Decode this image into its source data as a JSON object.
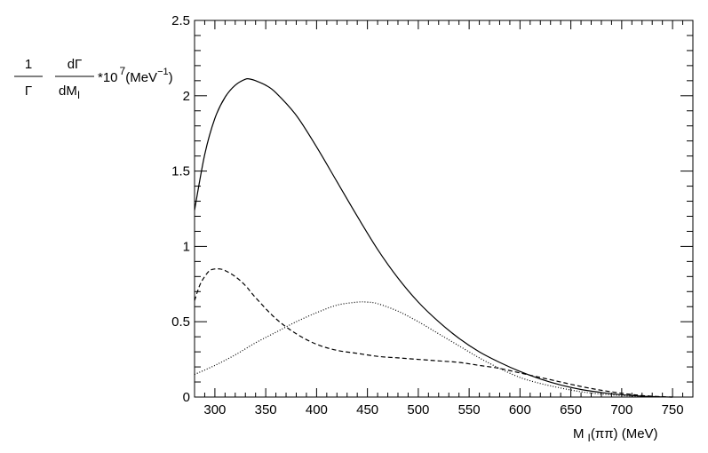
{
  "chart_data": {
    "type": "line",
    "title": "",
    "xlabel_parts": {
      "main": "M",
      "sub": "I",
      "suffix": "(ππ) (MeV)"
    },
    "ylabel_parts": {
      "frac1_num": "1",
      "frac1_den": "Γ",
      "frac2_num": "dΓ",
      "frac2_den_main": "dM",
      "frac2_den_sub": "I",
      "multiplier": "*10",
      "multiplier_exp": "7",
      "unit_pre": "(MeV",
      "unit_exp": "−1",
      "unit_post": ")"
    },
    "xlim": [
      280,
      770
    ],
    "ylim": [
      0,
      2.5
    ],
    "x_ticks": [
      300,
      350,
      400,
      450,
      500,
      550,
      600,
      650,
      700,
      750
    ],
    "x_tick_labels": [
      "300",
      "350",
      "400",
      "450",
      "500",
      "550",
      "600",
      "650",
      "700",
      "750"
    ],
    "y_ticks": [
      0,
      0.5,
      1,
      1.5,
      2,
      2.5
    ],
    "y_tick_labels": [
      "0",
      "0.5",
      "1",
      "1.5",
      "2",
      "2.5"
    ],
    "grid": false,
    "series": [
      {
        "style": "solid",
        "x": [
          280,
          290,
          300,
          310,
          320,
          330,
          335,
          340,
          350,
          360,
          380,
          400,
          420,
          440,
          460,
          480,
          500,
          520,
          540,
          560,
          580,
          600,
          620,
          640,
          660,
          680,
          700,
          720,
          740,
          750
        ],
        "y": [
          1.24,
          1.61,
          1.85,
          1.99,
          2.07,
          2.11,
          2.11,
          2.1,
          2.07,
          2.02,
          1.87,
          1.66,
          1.43,
          1.2,
          0.98,
          0.79,
          0.63,
          0.5,
          0.39,
          0.3,
          0.23,
          0.17,
          0.12,
          0.08,
          0.05,
          0.03,
          0.015,
          0.006,
          0.001,
          0
        ]
      },
      {
        "style": "dashed",
        "x": [
          280,
          285,
          290,
          295,
          300,
          305,
          310,
          320,
          330,
          340,
          360,
          380,
          400,
          420,
          440,
          460,
          480,
          500,
          520,
          540,
          560,
          580,
          600,
          620,
          640,
          660,
          680,
          700,
          720,
          740,
          750
        ],
        "y": [
          0.64,
          0.74,
          0.8,
          0.84,
          0.85,
          0.85,
          0.84,
          0.8,
          0.74,
          0.66,
          0.52,
          0.42,
          0.35,
          0.31,
          0.29,
          0.27,
          0.26,
          0.25,
          0.24,
          0.23,
          0.21,
          0.19,
          0.16,
          0.13,
          0.1,
          0.07,
          0.045,
          0.025,
          0.01,
          0.002,
          0
        ]
      },
      {
        "style": "dotted",
        "x": [
          280,
          300,
          320,
          340,
          360,
          380,
          400,
          420,
          440,
          450,
          460,
          480,
          500,
          520,
          540,
          560,
          580,
          600,
          620,
          640,
          660,
          680,
          700,
          720,
          740,
          750
        ],
        "y": [
          0.15,
          0.21,
          0.28,
          0.36,
          0.43,
          0.5,
          0.56,
          0.61,
          0.63,
          0.63,
          0.62,
          0.57,
          0.5,
          0.42,
          0.34,
          0.26,
          0.19,
          0.13,
          0.09,
          0.06,
          0.035,
          0.02,
          0.01,
          0.004,
          0.001,
          0
        ]
      }
    ]
  }
}
